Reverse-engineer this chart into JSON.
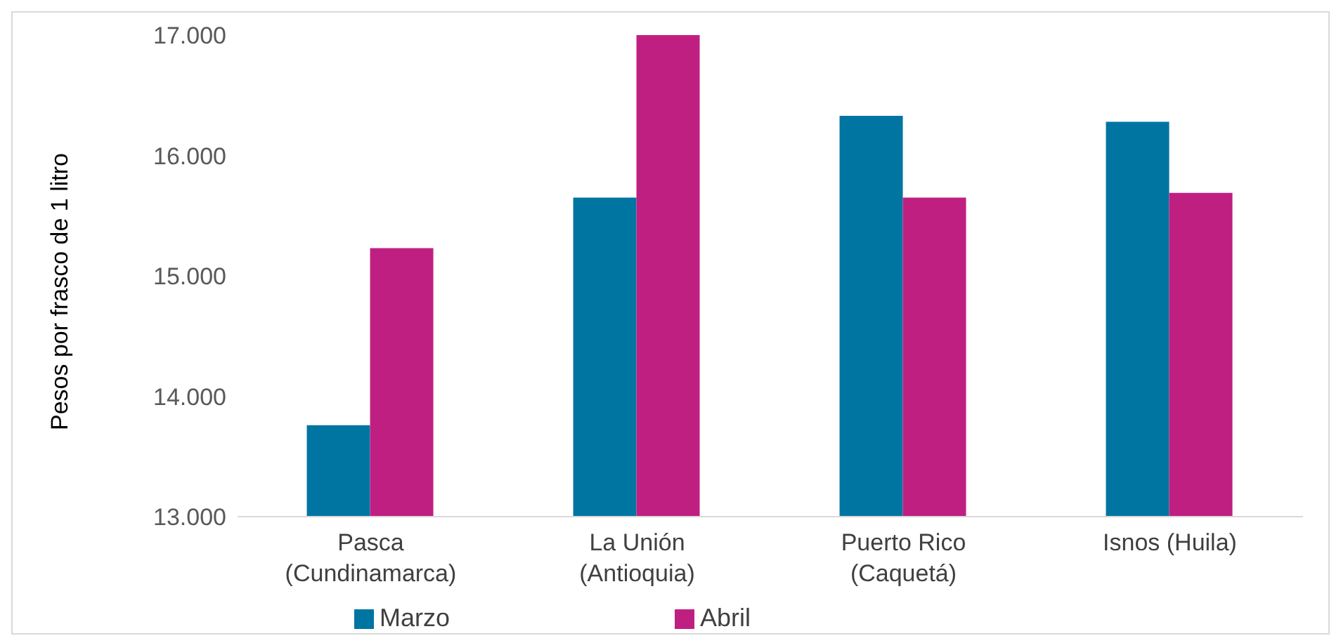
{
  "chart_data": {
    "type": "bar",
    "ylabel": "Pesos por frasco de 1 litro",
    "categories": [
      "Pasca (Cundinamarca)",
      "La Unión (Antioquia)",
      "Puerto Rico (Caquetá)",
      "Isnos (Huila)"
    ],
    "series": [
      {
        "name": "Marzo",
        "color": "#0075a2",
        "values": [
          13760,
          15650,
          16330,
          16280
        ]
      },
      {
        "name": "Abril",
        "color": "#c01f82",
        "values": [
          15230,
          17000,
          15650,
          15690
        ]
      }
    ],
    "ylim": [
      13000,
      17000
    ],
    "yticks": [
      {
        "value": 13000,
        "label": "13.000"
      },
      {
        "value": 14000,
        "label": "14.000"
      },
      {
        "value": 15000,
        "label": "15.000"
      },
      {
        "value": 16000,
        "label": "16.000"
      },
      {
        "value": 17000,
        "label": "17.000"
      }
    ],
    "grid": false,
    "legend": "bottom"
  }
}
